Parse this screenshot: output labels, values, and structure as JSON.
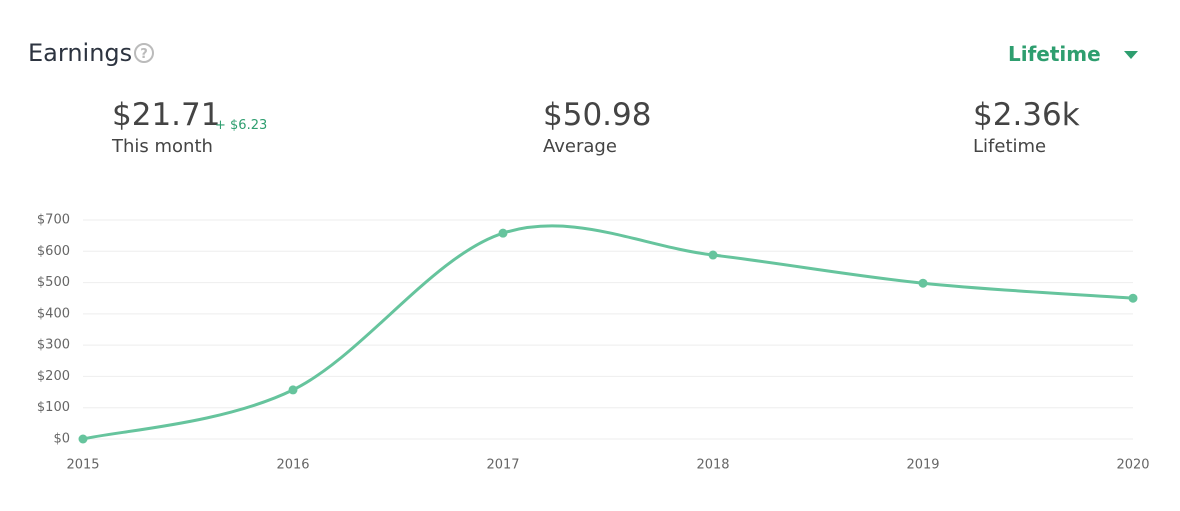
{
  "header": {
    "title": "Earnings",
    "dropdown": "Lifetime"
  },
  "stats": [
    {
      "value": "$21.71",
      "change": "+ $6.23",
      "label": "This month"
    },
    {
      "value": "$50.98",
      "label": "Average"
    },
    {
      "value": "$2.36k",
      "label": "Lifetime"
    }
  ],
  "chart_data": {
    "type": "line",
    "categories": [
      "2015",
      "2016",
      "2017",
      "2018",
      "2019",
      "2020"
    ],
    "values": [
      0,
      157,
      658,
      588,
      498,
      450
    ],
    "color": "#66c49d",
    "ylim": [
      0,
      700
    ],
    "yticks": [
      {
        "value": 0,
        "label": "$0"
      },
      {
        "value": 100,
        "label": "$100"
      },
      {
        "value": 200,
        "label": "$200"
      },
      {
        "value": 300,
        "label": "$300"
      },
      {
        "value": 400,
        "label": "$400"
      },
      {
        "value": 500,
        "label": "$500"
      },
      {
        "value": 600,
        "label": "$600"
      },
      {
        "value": 700,
        "label": "$700"
      }
    ],
    "grid": true
  }
}
